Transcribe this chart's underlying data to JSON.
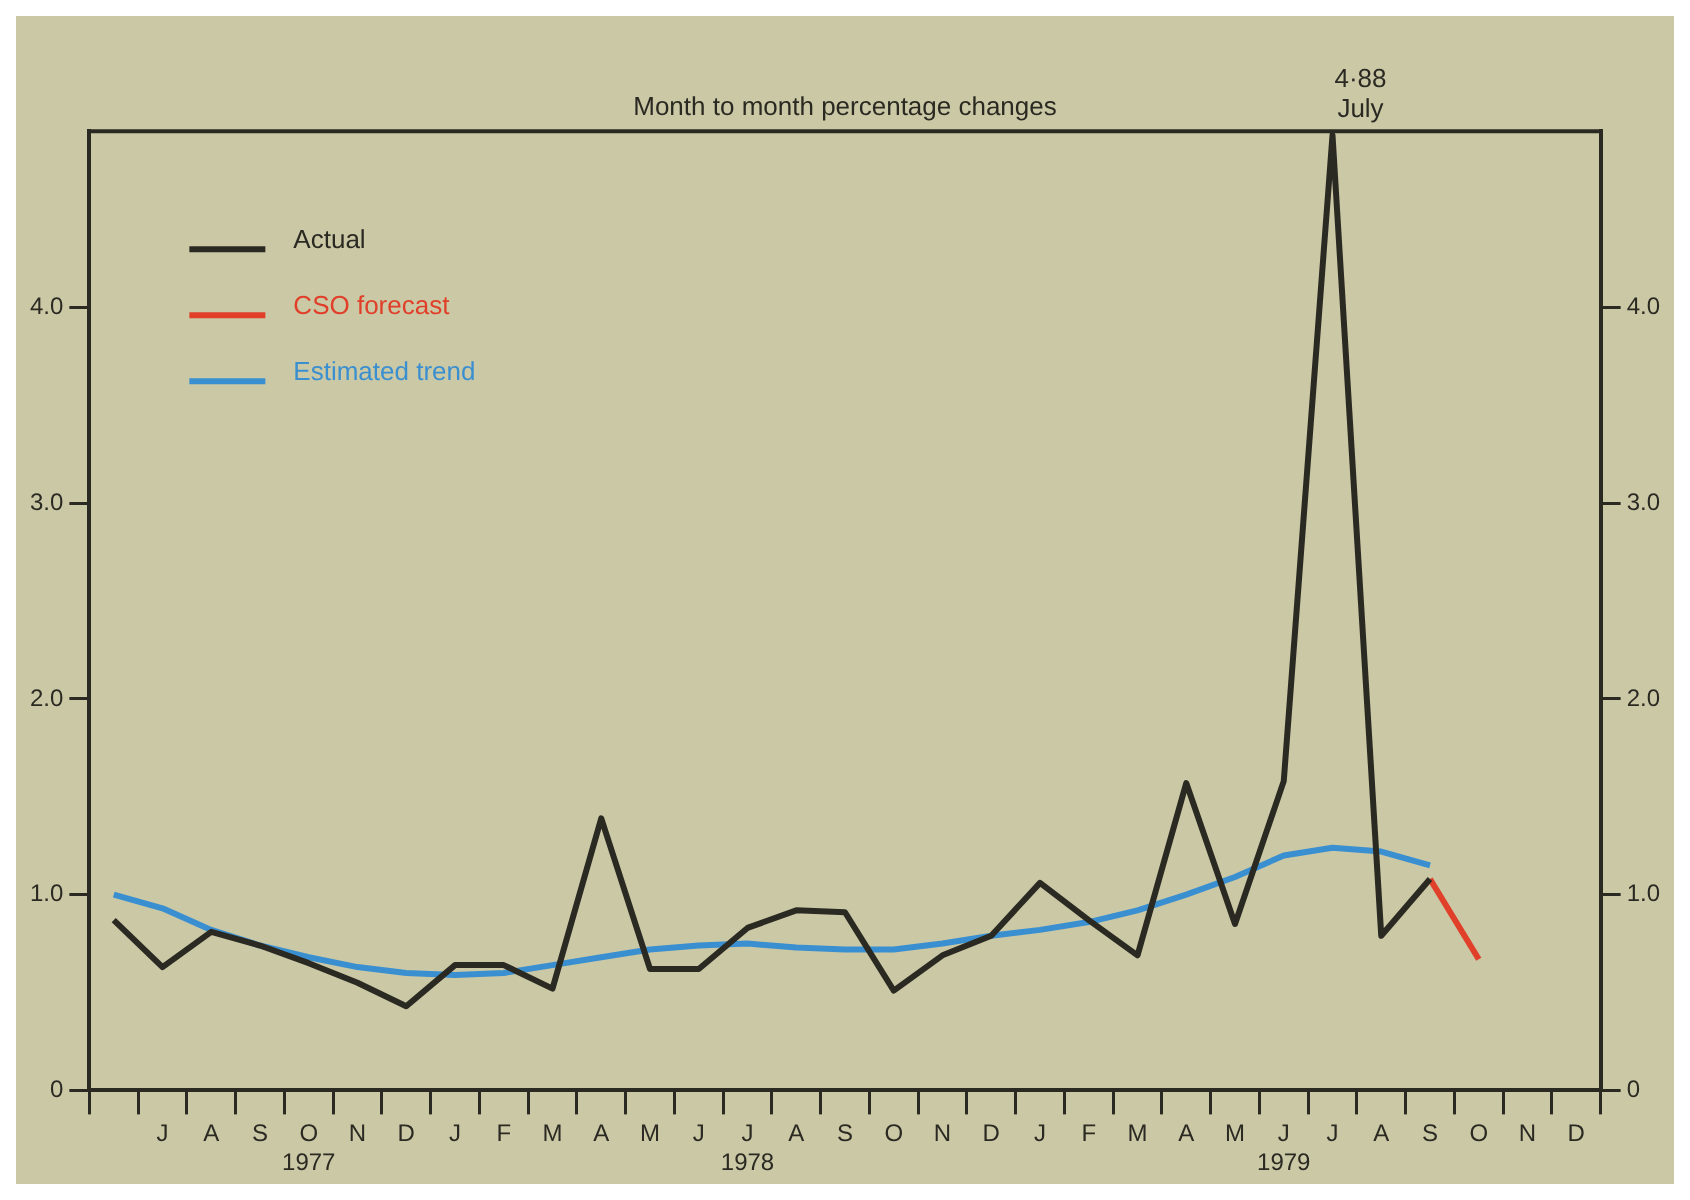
{
  "chart_data": {
    "type": "line",
    "subtitle": "Month to month percentage changes",
    "categories": [
      null,
      "J",
      "A",
      "S",
      "O\n1977",
      "N",
      "D",
      "J",
      "F",
      "M",
      "A",
      "M",
      "J",
      "J\n1978",
      "A",
      "S",
      "O",
      "N",
      "D",
      "J",
      "F",
      "M",
      "A",
      "M",
      "J\n1979",
      "J",
      "A",
      "S",
      "O",
      "N",
      "D"
    ],
    "series": [
      {
        "name": "Actual",
        "color": "#2b2a22",
        "values": [
          0.87,
          0.63,
          0.81,
          0.74,
          0.65,
          0.55,
          0.43,
          0.64,
          0.64,
          0.52,
          1.39,
          0.62,
          0.62,
          0.83,
          0.92,
          0.91,
          0.51,
          0.69,
          0.79,
          1.06,
          0.87,
          0.69,
          1.57,
          0.85,
          1.58,
          4.88,
          0.79,
          1.08,
          null,
          null,
          null
        ]
      },
      {
        "name": "CSO forecast",
        "color": "#e0402a",
        "values": [
          null,
          null,
          null,
          null,
          null,
          null,
          null,
          null,
          null,
          null,
          null,
          null,
          null,
          null,
          null,
          null,
          null,
          null,
          null,
          null,
          null,
          null,
          null,
          null,
          null,
          null,
          null,
          1.08,
          0.67,
          null,
          null
        ]
      },
      {
        "name": "Estimated trend",
        "color": "#3a8fd0",
        "values": [
          1.0,
          0.93,
          0.82,
          0.74,
          0.68,
          0.63,
          0.6,
          0.59,
          0.6,
          0.64,
          0.68,
          0.72,
          0.74,
          0.75,
          0.73,
          0.72,
          0.72,
          0.75,
          0.79,
          0.82,
          0.86,
          0.92,
          1.0,
          1.09,
          1.2,
          1.24,
          1.22,
          1.15,
          null,
          null,
          null
        ]
      }
    ],
    "annotations": [
      "4·88\nJuly"
    ],
    "ylim": [
      0,
      4.9
    ],
    "yticks": [
      0,
      {
        "value": 1,
        "label": "1.0"
      },
      {
        "value": 2,
        "label": "2.0"
      },
      {
        "value": 3,
        "label": "3.0"
      },
      {
        "value": 4,
        "label": "4.0"
      }
    ],
    "y2lim": [
      0,
      4.9
    ],
    "y2ticks": [
      0,
      {
        "value": 1,
        "label": "1.0"
      },
      {
        "value": 2,
        "label": "2.0"
      },
      {
        "value": 3,
        "label": "3.0"
      },
      {
        "value": 4,
        "label": "4.0"
      }
    ],
    "grid": false,
    "legend": "top left",
    "marker": "none",
    "line_style": "solid"
  }
}
